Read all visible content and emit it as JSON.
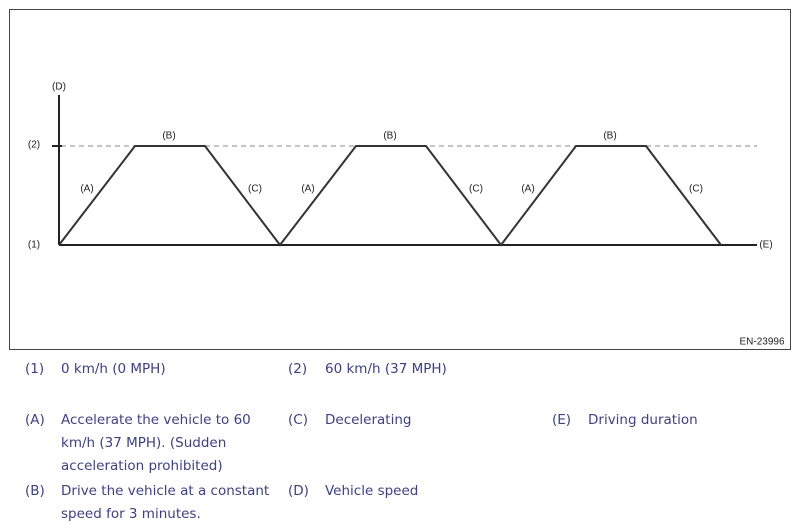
{
  "diagram": {
    "axis_labels": {
      "vertical": "(D)",
      "horizontal": "(E)",
      "upper_level": "(2)",
      "lower_level": "(1)"
    },
    "cycles": [
      {
        "accelerate": "(A)",
        "constant": "(B)",
        "decelerate": "(C)"
      },
      {
        "accelerate": "(A)",
        "constant": "(B)",
        "decelerate": "(C)"
      },
      {
        "accelerate": "(A)",
        "constant": "(B)",
        "decelerate": "(C)"
      }
    ],
    "code": "EN-23996"
  },
  "legend": [
    {
      "key": "(1)",
      "text": "0 km/h (0 MPH)"
    },
    {
      "key": "(2)",
      "text": "60 km/h (37 MPH)"
    },
    {
      "key": "(A)",
      "text": "Accelerate the vehicle to 60 km/h (37 MPH). (Sudden acceleration prohibited)"
    },
    {
      "key": "(C)",
      "text": "Decelerating"
    },
    {
      "key": "(E)",
      "text": "Driving duration"
    },
    {
      "key": "(B)",
      "text": "Drive the vehicle at a constant speed for 3 minutes."
    },
    {
      "key": "(D)",
      "text": "Vehicle speed"
    }
  ]
}
